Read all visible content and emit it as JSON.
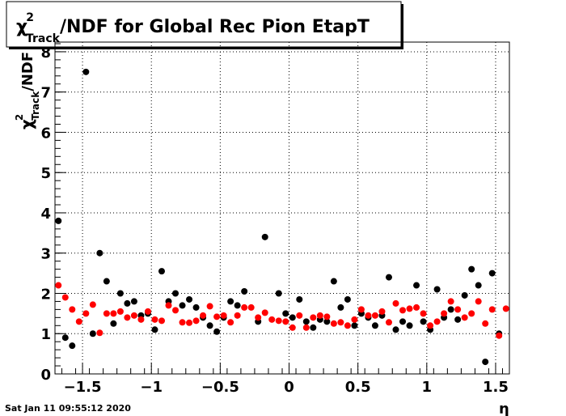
{
  "chart_data": {
    "type": "scatter",
    "title_symbol": "χ",
    "title_sup": "2",
    "title_sub": "Track",
    "title_rest": "/NDF for Global Rec Pion EtapT",
    "ylabel_sup": "2",
    "ylabel_sub": "Track",
    "ylabel_rest": "/NDF",
    "xlabel": "η",
    "footer": "Sat Jan 11 09:55:12 2020",
    "xlim": [
      -1.7,
      1.6
    ],
    "ylim": [
      0,
      8.24
    ],
    "xticks": [
      {
        "value": -1.5,
        "label": "−1.5"
      },
      {
        "value": -1,
        "label": "−1"
      },
      {
        "value": -0.5,
        "label": "−0.5"
      },
      0,
      0.5,
      1,
      1.5
    ],
    "yticks": [
      0,
      1,
      2,
      3,
      4,
      5,
      6,
      7,
      8
    ],
    "grid": true,
    "x": [
      -1.675,
      -1.625,
      -1.575,
      -1.525,
      -1.475,
      -1.425,
      -1.375,
      -1.325,
      -1.275,
      -1.225,
      -1.175,
      -1.125,
      -1.075,
      -1.025,
      -0.975,
      -0.925,
      -0.875,
      -0.825,
      -0.775,
      -0.725,
      -0.675,
      -0.625,
      -0.575,
      -0.525,
      -0.475,
      -0.425,
      -0.375,
      -0.325,
      -0.275,
      -0.225,
      -0.175,
      -0.125,
      -0.075,
      -0.025,
      0.025,
      0.075,
      0.125,
      0.175,
      0.225,
      0.275,
      0.325,
      0.375,
      0.425,
      0.475,
      0.525,
      0.575,
      0.625,
      0.675,
      0.725,
      0.775,
      0.825,
      0.875,
      0.925,
      0.975,
      1.025,
      1.075,
      1.125,
      1.175,
      1.225,
      1.275,
      1.325,
      1.375,
      1.425,
      1.475,
      1.525,
      1.575
    ],
    "series": [
      {
        "color": "#000000",
        "values": [
          3.8,
          0.9,
          0.7,
          null,
          7.5,
          1.0,
          3.0,
          2.3,
          1.25,
          2.0,
          1.75,
          1.8,
          1.45,
          1.5,
          1.1,
          2.55,
          1.8,
          2.0,
          1.7,
          1.85,
          1.65,
          1.4,
          1.2,
          1.05,
          1.4,
          1.8,
          1.7,
          2.05,
          null,
          1.3,
          3.4,
          null,
          2.0,
          1.5,
          1.4,
          1.85,
          1.3,
          1.15,
          1.35,
          1.3,
          2.3,
          1.65,
          1.85,
          1.2,
          1.5,
          1.4,
          1.2,
          1.45,
          2.4,
          1.1,
          1.3,
          1.2,
          2.2,
          1.3,
          1.1,
          2.1,
          1.4,
          1.6,
          1.35,
          1.95,
          2.6,
          2.2,
          0.3,
          2.5,
          1.0,
          null
        ]
      },
      {
        "color": "#ff0000",
        "values": [
          2.2,
          1.9,
          1.6,
          1.3,
          1.5,
          1.72,
          1.02,
          1.5,
          1.5,
          1.55,
          1.4,
          1.45,
          1.35,
          1.55,
          1.35,
          1.32,
          1.7,
          1.58,
          1.28,
          1.27,
          1.32,
          1.45,
          1.68,
          1.42,
          1.45,
          1.28,
          1.45,
          1.65,
          1.65,
          1.4,
          1.52,
          1.35,
          1.32,
          1.3,
          1.15,
          1.45,
          1.15,
          1.4,
          1.45,
          1.42,
          1.25,
          1.28,
          1.2,
          1.35,
          1.6,
          1.45,
          1.45,
          1.55,
          1.28,
          1.75,
          1.58,
          1.62,
          1.65,
          1.5,
          1.2,
          1.3,
          1.5,
          1.8,
          1.6,
          1.4,
          1.5,
          1.8,
          1.25,
          1.6,
          0.95,
          1.62
        ]
      }
    ]
  }
}
